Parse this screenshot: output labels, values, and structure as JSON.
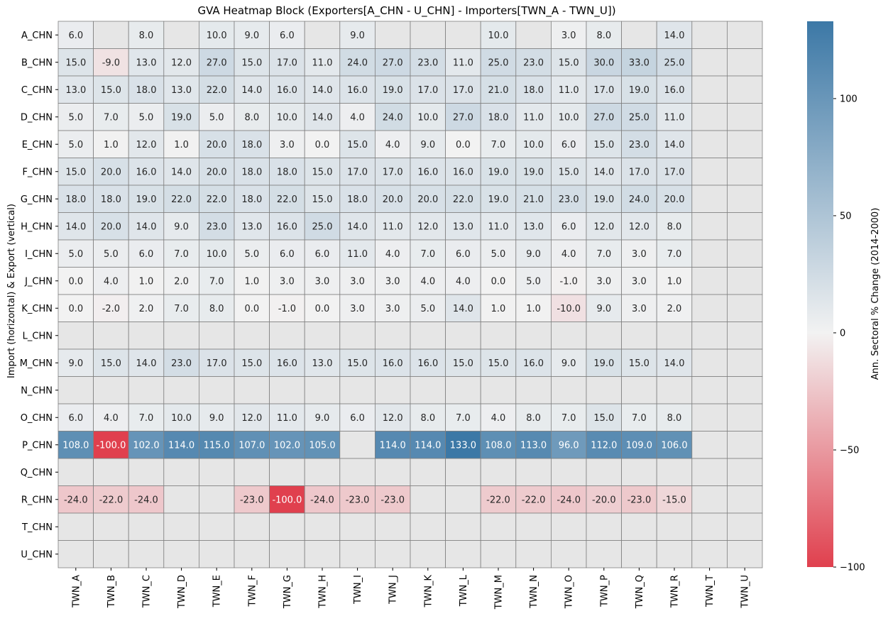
{
  "chart_data": {
    "type": "heatmap",
    "title": "GVA Heatmap Block (Exporters[A_CHN - U_CHN] - Importers[TWN_A - TWN_U])",
    "ylabel": "Import (horizontal) & Export (vertical)",
    "xlabel": "",
    "colorbar_label": "Ann. Sectoral % Change (2014-2000)",
    "colorbar_ticks": [
      -100,
      -50,
      0,
      50,
      100
    ],
    "colorbar_range": [
      -100,
      133
    ],
    "colors": {
      "negative": "#e0404e",
      "mid": "#f2f2f2",
      "positive": "#3c78a6",
      "missing": "#e6e6e6",
      "grid": "#808080"
    },
    "x_categories": [
      "TWN_A",
      "TWN_B",
      "TWN_C",
      "TWN_D",
      "TWN_E",
      "TWN_F",
      "TWN_G",
      "TWN_H",
      "TWN_I",
      "TWN_J",
      "TWN_K",
      "TWN_L",
      "TWN_M",
      "TWN_N",
      "TWN_O",
      "TWN_P",
      "TWN_Q",
      "TWN_R",
      "TWN_T",
      "TWN_U"
    ],
    "y_categories": [
      "A_CHN",
      "B_CHN",
      "C_CHN",
      "D_CHN",
      "E_CHN",
      "F_CHN",
      "G_CHN",
      "H_CHN",
      "I_CHN",
      "J_CHN",
      "K_CHN",
      "L_CHN",
      "M_CHN",
      "N_CHN",
      "O_CHN",
      "P_CHN",
      "Q_CHN",
      "R_CHN",
      "T_CHN",
      "U_CHN"
    ],
    "values": [
      [
        6.0,
        null,
        8.0,
        null,
        10.0,
        9.0,
        6.0,
        null,
        9.0,
        null,
        null,
        null,
        10.0,
        null,
        3.0,
        8.0,
        null,
        14.0,
        null,
        null
      ],
      [
        15.0,
        -9.0,
        13.0,
        12.0,
        27.0,
        15.0,
        17.0,
        11.0,
        24.0,
        27.0,
        23.0,
        11.0,
        25.0,
        23.0,
        15.0,
        30.0,
        33.0,
        25.0,
        null,
        null
      ],
      [
        13.0,
        15.0,
        18.0,
        13.0,
        22.0,
        14.0,
        16.0,
        14.0,
        16.0,
        19.0,
        17.0,
        17.0,
        21.0,
        18.0,
        11.0,
        17.0,
        19.0,
        16.0,
        null,
        null
      ],
      [
        5.0,
        7.0,
        5.0,
        19.0,
        5.0,
        8.0,
        10.0,
        14.0,
        4.0,
        24.0,
        10.0,
        27.0,
        18.0,
        11.0,
        10.0,
        27.0,
        25.0,
        11.0,
        null,
        null
      ],
      [
        5.0,
        1.0,
        12.0,
        1.0,
        20.0,
        18.0,
        3.0,
        0.0,
        15.0,
        4.0,
        9.0,
        0.0,
        7.0,
        10.0,
        6.0,
        15.0,
        23.0,
        14.0,
        null,
        null
      ],
      [
        15.0,
        20.0,
        16.0,
        14.0,
        20.0,
        18.0,
        18.0,
        15.0,
        17.0,
        17.0,
        16.0,
        16.0,
        19.0,
        19.0,
        15.0,
        14.0,
        17.0,
        17.0,
        null,
        null
      ],
      [
        18.0,
        18.0,
        19.0,
        22.0,
        22.0,
        18.0,
        22.0,
        15.0,
        18.0,
        20.0,
        20.0,
        22.0,
        19.0,
        21.0,
        23.0,
        19.0,
        24.0,
        20.0,
        null,
        null
      ],
      [
        14.0,
        20.0,
        14.0,
        9.0,
        23.0,
        13.0,
        16.0,
        25.0,
        14.0,
        11.0,
        12.0,
        13.0,
        11.0,
        13.0,
        6.0,
        12.0,
        12.0,
        8.0,
        null,
        null
      ],
      [
        5.0,
        5.0,
        6.0,
        7.0,
        10.0,
        5.0,
        6.0,
        6.0,
        11.0,
        4.0,
        7.0,
        6.0,
        5.0,
        9.0,
        4.0,
        7.0,
        3.0,
        7.0,
        null,
        null
      ],
      [
        0.0,
        4.0,
        1.0,
        2.0,
        7.0,
        1.0,
        3.0,
        3.0,
        3.0,
        3.0,
        4.0,
        4.0,
        0.0,
        5.0,
        -1.0,
        3.0,
        3.0,
        1.0,
        null,
        null
      ],
      [
        0.0,
        -2.0,
        2.0,
        7.0,
        8.0,
        0.0,
        -1.0,
        0.0,
        3.0,
        3.0,
        5.0,
        14.0,
        1.0,
        1.0,
        -10.0,
        9.0,
        3.0,
        2.0,
        null,
        null
      ],
      [
        null,
        null,
        null,
        null,
        null,
        null,
        null,
        null,
        null,
        null,
        null,
        null,
        null,
        null,
        null,
        null,
        null,
        null,
        null,
        null
      ],
      [
        9.0,
        15.0,
        14.0,
        23.0,
        17.0,
        15.0,
        16.0,
        13.0,
        15.0,
        16.0,
        16.0,
        15.0,
        15.0,
        16.0,
        9.0,
        19.0,
        15.0,
        14.0,
        null,
        null
      ],
      [
        null,
        null,
        null,
        null,
        null,
        null,
        null,
        null,
        null,
        null,
        null,
        null,
        null,
        null,
        null,
        null,
        null,
        null,
        null,
        null
      ],
      [
        6.0,
        4.0,
        7.0,
        10.0,
        9.0,
        12.0,
        11.0,
        9.0,
        6.0,
        12.0,
        8.0,
        7.0,
        4.0,
        8.0,
        7.0,
        15.0,
        7.0,
        8.0,
        null,
        null
      ],
      [
        108.0,
        -100.0,
        102.0,
        114.0,
        115.0,
        107.0,
        102.0,
        105.0,
        null,
        114.0,
        114.0,
        133.0,
        108.0,
        113.0,
        96.0,
        112.0,
        109.0,
        106.0,
        null,
        null
      ],
      [
        null,
        null,
        null,
        null,
        null,
        null,
        null,
        null,
        null,
        null,
        null,
        null,
        null,
        null,
        null,
        null,
        null,
        null,
        null,
        null
      ],
      [
        -24.0,
        -22.0,
        -24.0,
        null,
        null,
        -23.0,
        -100.0,
        -24.0,
        -23.0,
        -23.0,
        null,
        null,
        -22.0,
        -22.0,
        -24.0,
        -20.0,
        -23.0,
        -15.0,
        null,
        null
      ],
      [
        null,
        null,
        null,
        null,
        null,
        null,
        null,
        null,
        null,
        null,
        null,
        null,
        null,
        null,
        null,
        null,
        null,
        null,
        null,
        null
      ],
      [
        null,
        null,
        null,
        null,
        null,
        null,
        null,
        null,
        null,
        null,
        null,
        null,
        null,
        null,
        null,
        null,
        null,
        null,
        null,
        null
      ]
    ]
  }
}
